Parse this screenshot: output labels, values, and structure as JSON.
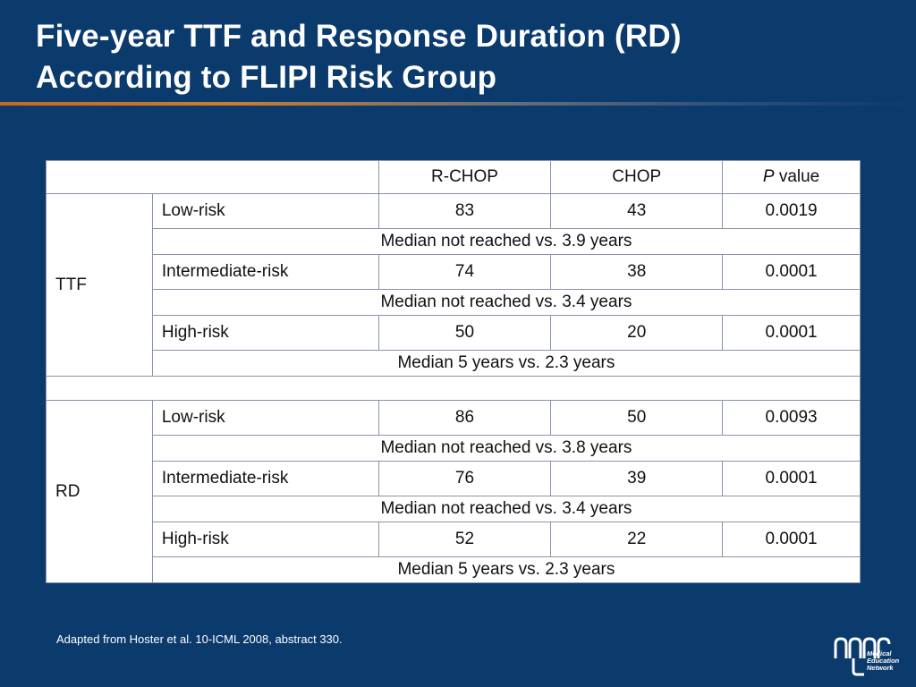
{
  "slide": {
    "title_line1": "Five-year TTF and Response Duration (RD)",
    "title_line2": "According to FLIPI Risk Group",
    "footnote": "Adapted from Hoster et al. 10-ICML 2008, abstract 330.",
    "logo_text": [
      "Medical",
      "Education",
      "Network"
    ]
  },
  "table": {
    "header": {
      "col1": "R-CHOP",
      "col2": "CHOP",
      "p_italic": "P",
      "p_rest": " value"
    },
    "groups": [
      {
        "label": "TTF",
        "rows": [
          {
            "risk": "Low-risk",
            "rchop": "83",
            "chop": "43",
            "p": "0.0019",
            "median": "Median not reached vs. 3.9 years"
          },
          {
            "risk": "Intermediate-risk",
            "rchop": "74",
            "chop": "38",
            "p": "0.0001",
            "median": "Median not reached vs. 3.4 years"
          },
          {
            "risk": "High-risk",
            "rchop": "50",
            "chop": "20",
            "p": "0.0001",
            "median": "Median 5 years vs. 2.3 years"
          }
        ]
      },
      {
        "label": "RD",
        "rows": [
          {
            "risk": "Low-risk",
            "rchop": "86",
            "chop": "50",
            "p": "0.0093",
            "median": "Median not reached vs. 3.8 years"
          },
          {
            "risk": "Intermediate-risk",
            "rchop": "76",
            "chop": "39",
            "p": "0.0001",
            "median": "Median not reached vs. 3.4 years"
          },
          {
            "risk": "High-risk",
            "rchop": "52",
            "chop": "22",
            "p": "0.0001",
            "median": "Median 5 years vs. 2.3 years"
          }
        ]
      }
    ]
  }
}
